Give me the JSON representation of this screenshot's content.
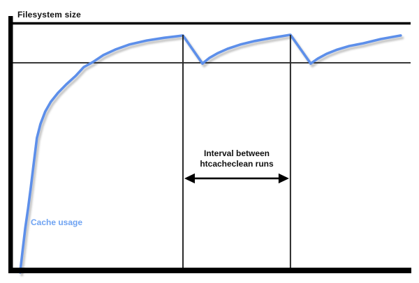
{
  "colors": {
    "background": "#ffffff",
    "axis": "#000000",
    "reference_line": "#1a1a1a",
    "event_line": "#2a2a2a",
    "curve": "#5d8fea",
    "curve_shadow": "#c6c6c6",
    "curve_label": "#6fa3f2",
    "annotation_text": "#111111"
  },
  "chart_data": {
    "type": "line",
    "title": "",
    "grid": false,
    "x_range": [
      0,
      100
    ],
    "y_range": [
      0,
      1.05
    ],
    "y_unit": "fraction_of_filesystem_size",
    "series": [
      {
        "name": "Cache usage",
        "color": "#5d8fea",
        "points": [
          [
            1.9,
            0.003
          ],
          [
            2.5,
            0.089
          ],
          [
            3.2,
            0.181
          ],
          [
            3.9,
            0.259
          ],
          [
            4.6,
            0.345
          ],
          [
            5.3,
            0.437
          ],
          [
            6.1,
            0.54
          ],
          [
            7.0,
            0.596
          ],
          [
            8.2,
            0.646
          ],
          [
            9.6,
            0.685
          ],
          [
            11.4,
            0.721
          ],
          [
            13.5,
            0.755
          ],
          [
            15.8,
            0.788
          ],
          [
            17.9,
            0.824
          ],
          [
            20.2,
            0.844
          ],
          [
            22.8,
            0.872
          ],
          [
            25.8,
            0.894
          ],
          [
            29.3,
            0.914
          ],
          [
            33.7,
            0.93
          ],
          [
            38.1,
            0.941
          ],
          [
            42.8,
            0.95
          ],
          [
            47.7,
            0.838
          ],
          [
            49.5,
            0.861
          ],
          [
            51.6,
            0.88
          ],
          [
            54.0,
            0.897
          ],
          [
            57.2,
            0.914
          ],
          [
            60.9,
            0.928
          ],
          [
            65.3,
            0.941
          ],
          [
            69.8,
            0.953
          ],
          [
            74.9,
            0.838
          ],
          [
            76.7,
            0.858
          ],
          [
            78.9,
            0.877
          ],
          [
            81.6,
            0.894
          ],
          [
            84.6,
            0.908
          ],
          [
            88.1,
            0.919
          ],
          [
            92.5,
            0.936
          ],
          [
            97.5,
            0.95
          ]
        ]
      }
    ],
    "reference_lines": [
      {
        "name": "filesystem-size",
        "label": "Filesystem size",
        "y": 1.0
      },
      {
        "name": "cache-size-limit",
        "label": "",
        "y": 0.841
      }
    ],
    "event_lines": [
      {
        "name": "htcacheclean-run-1",
        "x": 42.8
      },
      {
        "name": "htcacheclean-run-2",
        "x": 69.8
      }
    ],
    "annotation": {
      "line1": "Interval between",
      "line2": "htcacheclean runs",
      "arrow_from_x": 42.8,
      "arrow_to_x": 69.8,
      "arrow_y": 0.379
    },
    "legend_position": "inline-label-near-curve-start"
  }
}
